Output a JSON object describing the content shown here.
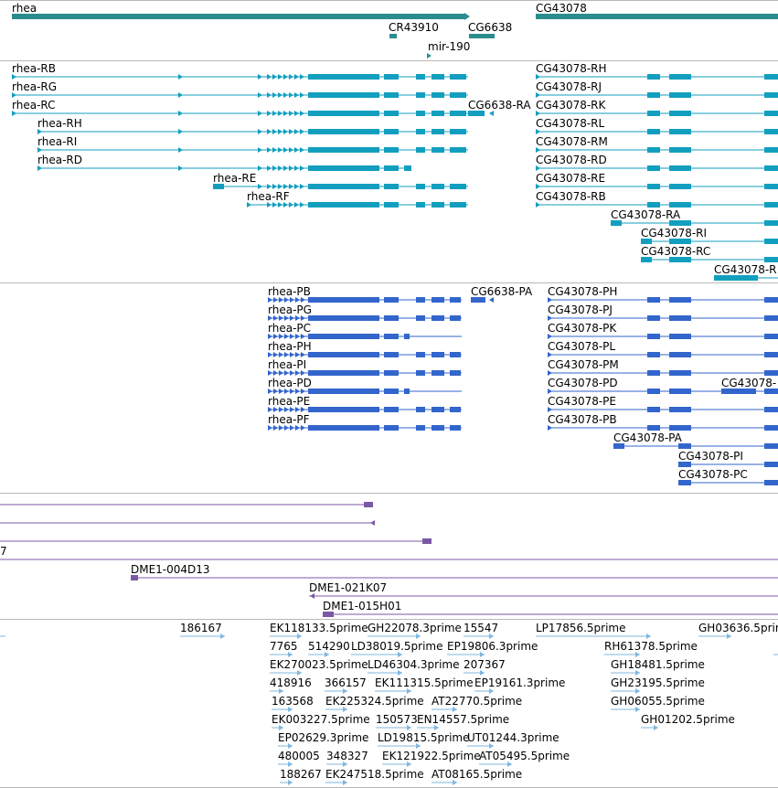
{
  "colors": {
    "gene": "#2a8d8d",
    "transcript": "#129fbf",
    "protein": "#3366cc",
    "clone": "#7b58a6",
    "est": "#7fb7df",
    "separator": "#b8b8b8"
  },
  "tracks": {
    "genes": {
      "labels": {
        "rhea": "rhea",
        "cr43910": "CR43910",
        "cg6638": "CG6638",
        "mir190": "mir-190",
        "cg43078": "CG43078"
      }
    },
    "transcripts": {
      "labels": {
        "rhea_rb": "rhea-RB",
        "rhea_rg": "rhea-RG",
        "rhea_rc": "rhea-RC",
        "rhea_rh": "rhea-RH",
        "rhea_ri": "rhea-RI",
        "rhea_rd": "rhea-RD",
        "rhea_re": "rhea-RE",
        "rhea_rf": "rhea-RF",
        "cg6638_ra": "CG6638-RA",
        "cg43078_rh": "CG43078-RH",
        "cg43078_rj": "CG43078-RJ",
        "cg43078_rk": "CG43078-RK",
        "cg43078_rl": "CG43078-RL",
        "cg43078_rm": "CG43078-RM",
        "cg43078_rd": "CG43078-RD",
        "cg43078_re": "CG43078-RE",
        "cg43078_rb": "CG43078-RB",
        "cg43078_ra": "CG43078-RA",
        "cg43078_ri": "CG43078-RI",
        "cg43078_rc": "CG43078-RC",
        "cg43078_r_partial": "CG43078-R"
      }
    },
    "proteins": {
      "labels": {
        "rhea_pb": "rhea-PB",
        "rhea_pg": "rhea-PG",
        "rhea_pc": "rhea-PC",
        "rhea_ph": "rhea-PH",
        "rhea_pi": "rhea-PI",
        "rhea_pd": "rhea-PD",
        "rhea_pe": "rhea-PE",
        "rhea_pf": "rhea-PF",
        "cg6638_pa": "CG6638-PA",
        "cg43078_ph": "CG43078-PH",
        "cg43078_pj": "CG43078-PJ",
        "cg43078_pk": "CG43078-PK",
        "cg43078_pl": "CG43078-PL",
        "cg43078_pm": "CG43078-PM",
        "cg43078_pd": "CG43078-PD",
        "cg43078_pe": "CG43078-PE",
        "cg43078_pb": "CG43078-PB",
        "cg43078_pa": "CG43078-PA",
        "cg43078_pi": "CG43078-PI",
        "cg43078_pc": "CG43078-PC",
        "cg43078_partial": "CG43078-"
      }
    },
    "clones": {
      "labels": {
        "partial_7": "7",
        "dme1_004d13": "DME1-004D13",
        "dme1_021k07": "DME1-021K07",
        "dme1_015h01": "DME1-015H01"
      }
    },
    "ests": {
      "labels": {
        "e186167": "186167",
        "ek118133": "EK118133.5prime",
        "gh22078": "GH22078.3prime",
        "e15547": "15547",
        "lp17856": "LP17856.5prime",
        "gh03636": "GH03636.5prime",
        "e7765": "7765",
        "e514290": "514290",
        "ld38019": "LD38019.5prime",
        "ep19806": "EP19806.3prime",
        "rh61378": "RH61378.5prime",
        "ek270023": "EK270023.5prime",
        "ld46304": "LD46304.3prime",
        "e207367": "207367",
        "gh18481": "GH18481.5prime",
        "e418916": "418916",
        "e366157": "366157",
        "ek111315": "EK111315.5prime",
        "ep19161": "EP19161.3prime",
        "gh23195": "GH23195.5prime",
        "e163568": "163568",
        "ek225324": "EK225324.5prime",
        "at22770": "AT22770.5prime",
        "gh06055": "GH06055.5prime",
        "ek003227": "EK003227.5prime",
        "e150573": "150573",
        "en14557": "EN14557.5prime",
        "gh01202": "GH01202.5prime",
        "ep02629": "EP02629.3prime",
        "ld19815": "LD19815.5prime",
        "ut01244": "UT01244.3prime",
        "e480005": "480005",
        "e348327": "348327",
        "ek121922": "EK121922.5prime",
        "at05495": "AT05495.5prime",
        "e188267": "188267",
        "ek247518": "EK247518.5prime",
        "at08165": "AT08165.5prime"
      }
    }
  }
}
